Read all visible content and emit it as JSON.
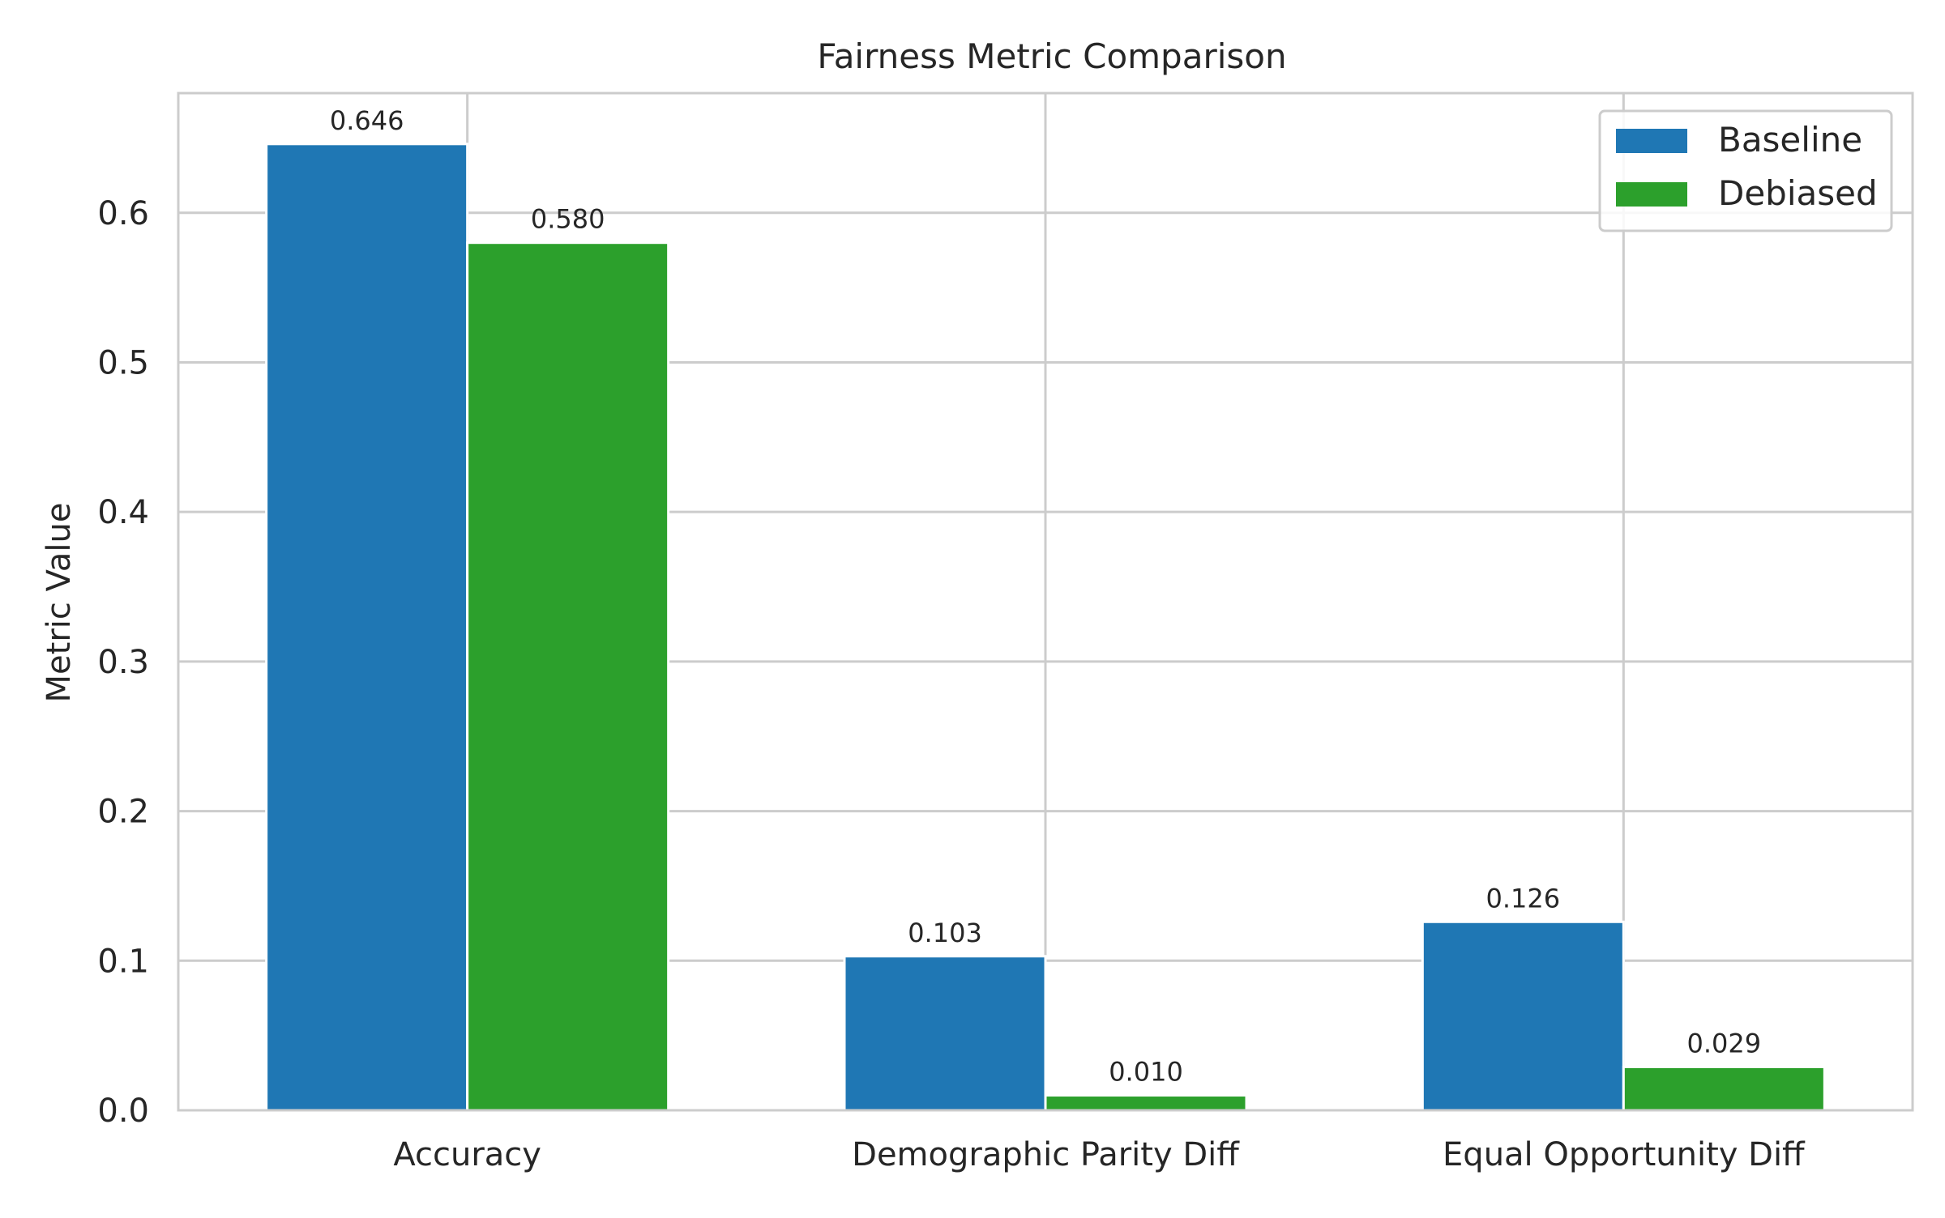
{
  "chart_data": {
    "type": "bar",
    "title": "Fairness Metric Comparison",
    "xlabel": "",
    "ylabel": "Metric Value",
    "categories": [
      "Accuracy",
      "Demographic Parity Diff",
      "Equal Opportunity Diff"
    ],
    "series": [
      {
        "name": "Baseline",
        "color": "#1f77b4",
        "values": [
          0.646,
          0.103,
          0.126
        ],
        "labels": [
          "0.646",
          "0.103",
          "0.126"
        ]
      },
      {
        "name": "Debiased",
        "color": "#2ca02c",
        "values": [
          0.58,
          0.01,
          0.029
        ],
        "labels": [
          "0.580",
          "0.010",
          "0.029"
        ]
      }
    ],
    "ylim": [
      0,
      0.68
    ],
    "yticks": [
      0.0,
      0.1,
      0.2,
      0.3,
      0.4,
      0.5,
      0.6
    ],
    "ytick_labels": [
      "0.0",
      "0.1",
      "0.2",
      "0.3",
      "0.4",
      "0.5",
      "0.6"
    ],
    "grid": true,
    "legend_position": "top-right"
  }
}
